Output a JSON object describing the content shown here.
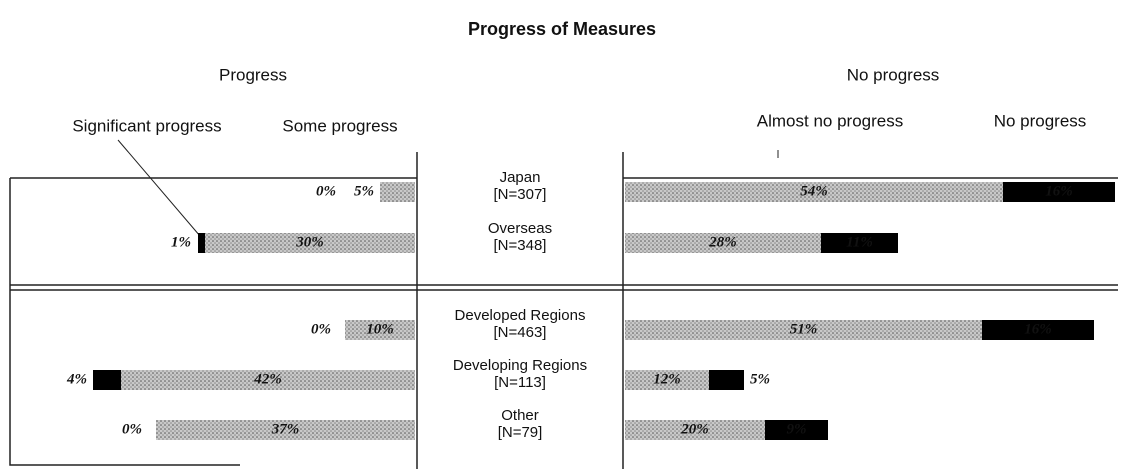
{
  "chart_data": {
    "type": "diverging-bar",
    "title": "Progress of Measures",
    "categories": [
      "Japan",
      "Overseas",
      "Developed Regions",
      "Developing Regions",
      "Other"
    ],
    "n_labels": [
      "[N=307]",
      "[N=348]",
      "[N=463]",
      "[N=113]",
      "[N=79]"
    ],
    "groups": [
      {
        "name": "Progress",
        "series": [
          {
            "name": "Significant progress",
            "color": "#000000",
            "values": [
              0,
              1,
              0,
              4,
              0
            ],
            "value_labels": [
              "0%",
              "1%",
              "0%",
              "4%",
              "0%"
            ]
          },
          {
            "name": "Some progress",
            "color": "#c8c8c8",
            "pattern": "hatched",
            "values": [
              5,
              30,
              10,
              42,
              37
            ],
            "value_labels": [
              "5%",
              "30%",
              "10%",
              "42%",
              "37%"
            ]
          }
        ]
      },
      {
        "name": "No progress",
        "series": [
          {
            "name": "Almost no progress",
            "color": "#c8c8c8",
            "pattern": "hatched",
            "values": [
              54,
              28,
              51,
              12,
              20
            ],
            "value_labels": [
              "54%",
              "28%",
              "51%",
              "12%",
              "20%"
            ]
          },
          {
            "name": "No progress",
            "color": "#000000",
            "values": [
              16,
              11,
              16,
              5,
              9
            ],
            "value_labels": [
              "16%",
              "11%",
              "16%",
              "5%",
              "9%"
            ]
          }
        ]
      }
    ]
  }
}
